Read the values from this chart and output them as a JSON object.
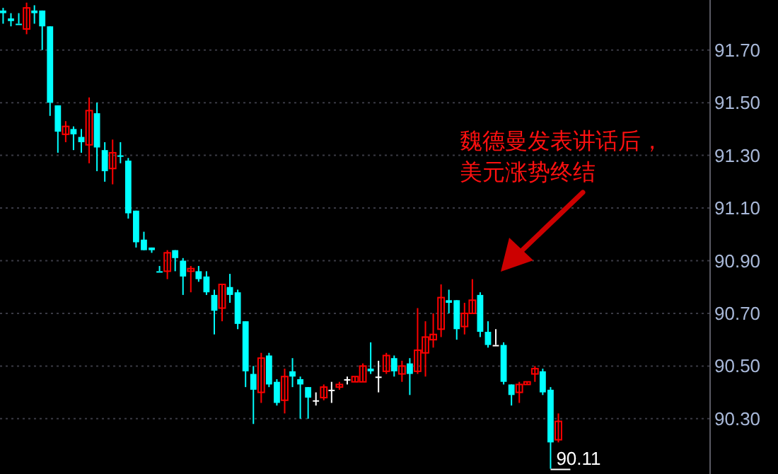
{
  "chart_data": {
    "type": "candlestick",
    "categories": [
      null,
      null,
      null,
      null,
      null,
      null,
      null,
      null,
      null,
      null,
      null,
      null,
      null,
      null,
      null,
      null,
      null,
      null,
      null,
      null,
      null,
      null,
      null,
      null,
      null,
      null,
      null,
      null,
      null,
      null,
      null,
      null,
      null,
      null,
      null,
      null,
      null,
      null,
      null,
      null,
      null,
      null,
      null,
      null,
      null,
      null,
      null,
      null,
      null,
      null,
      null,
      null,
      null,
      null,
      null,
      null,
      null,
      null,
      null,
      null,
      null,
      null,
      null,
      null,
      null,
      null,
      null,
      null,
      null,
      null,
      null,
      null,
      null,
      null,
      null,
      null,
      null,
      null,
      null,
      null,
      null,
      null,
      null,
      null,
      null,
      null,
      null,
      null,
      null,
      null,
      null
    ],
    "ohlc": [
      [
        91.85,
        91.86,
        91.8,
        91.84
      ],
      [
        91.82,
        91.84,
        91.79,
        91.81
      ],
      [
        91.8,
        91.84,
        91.8,
        91.8
      ],
      [
        91.78,
        91.88,
        91.76,
        91.86
      ],
      [
        91.85,
        91.87,
        91.8,
        91.84
      ],
      [
        91.85,
        91.85,
        91.7,
        91.79
      ],
      [
        91.79,
        91.79,
        91.45,
        91.5
      ],
      [
        91.49,
        91.49,
        91.31,
        91.39
      ],
      [
        91.38,
        91.43,
        91.35,
        91.41
      ],
      [
        91.4,
        91.41,
        91.32,
        91.38
      ],
      [
        91.37,
        91.4,
        91.31,
        91.35
      ],
      [
        91.34,
        91.52,
        91.27,
        91.47
      ],
      [
        91.46,
        91.5,
        91.24,
        91.33
      ],
      [
        91.32,
        91.35,
        91.2,
        91.24
      ],
      [
        91.25,
        91.36,
        91.19,
        91.31
      ],
      [
        91.3,
        91.35,
        91.27,
        91.3
      ],
      [
        91.28,
        91.29,
        91.06,
        91.08
      ],
      [
        91.09,
        91.09,
        90.95,
        90.97
      ],
      [
        90.98,
        91.01,
        90.94,
        90.94
      ],
      [
        90.95,
        90.95,
        90.93,
        90.94
      ],
      [
        90.86,
        90.88,
        90.86,
        90.86
      ],
      [
        90.86,
        90.94,
        90.83,
        90.93
      ],
      [
        90.94,
        90.94,
        90.86,
        90.91
      ],
      [
        90.9,
        90.91,
        90.77,
        90.84
      ],
      [
        90.86,
        90.88,
        90.78,
        90.87
      ],
      [
        90.86,
        90.88,
        90.82,
        90.83
      ],
      [
        90.84,
        90.86,
        90.77,
        90.78
      ],
      [
        90.77,
        90.79,
        90.62,
        90.71
      ],
      [
        90.72,
        90.81,
        90.67,
        90.81
      ],
      [
        90.8,
        90.85,
        90.74,
        90.77
      ],
      [
        90.78,
        90.79,
        90.64,
        90.66
      ],
      [
        90.67,
        90.67,
        90.42,
        90.48
      ],
      [
        90.47,
        90.5,
        90.28,
        90.41
      ],
      [
        90.4,
        90.55,
        90.36,
        90.53
      ],
      [
        90.54,
        90.55,
        90.42,
        90.43
      ],
      [
        90.44,
        90.45,
        90.35,
        90.36
      ],
      [
        90.37,
        90.49,
        90.32,
        90.46
      ],
      [
        90.48,
        90.53,
        90.42,
        90.46
      ],
      [
        90.45,
        90.46,
        90.3,
        90.43
      ],
      [
        90.42,
        90.42,
        90.3,
        90.38
      ],
      [
        90.37,
        90.4,
        90.35,
        90.37
      ],
      [
        90.38,
        90.43,
        90.37,
        90.42
      ],
      [
        90.41,
        90.44,
        90.36,
        90.41
      ],
      [
        90.42,
        90.44,
        90.41,
        90.43
      ],
      [
        90.45,
        90.46,
        90.43,
        90.45
      ],
      [
        90.44,
        90.46,
        90.44,
        90.46
      ],
      [
        90.44,
        90.51,
        90.44,
        90.5
      ],
      [
        90.49,
        90.59,
        90.47,
        90.48
      ],
      [
        90.46,
        90.52,
        90.4,
        90.46
      ],
      [
        90.48,
        90.55,
        90.47,
        90.54
      ],
      [
        90.53,
        90.54,
        90.46,
        90.48
      ],
      [
        90.47,
        90.52,
        90.44,
        90.5
      ],
      [
        90.51,
        90.53,
        90.39,
        90.47
      ],
      [
        90.48,
        90.72,
        90.47,
        90.56
      ],
      [
        90.55,
        90.67,
        90.46,
        90.61
      ],
      [
        90.6,
        90.7,
        90.57,
        90.62
      ],
      [
        90.64,
        90.81,
        90.61,
        90.76
      ],
      [
        90.75,
        90.79,
        90.7,
        90.74
      ],
      [
        90.75,
        90.75,
        90.6,
        90.64
      ],
      [
        90.65,
        90.74,
        90.62,
        90.7
      ],
      [
        90.7,
        90.83,
        90.7,
        90.75
      ],
      [
        90.77,
        90.78,
        90.61,
        90.63
      ],
      [
        90.63,
        90.67,
        90.57,
        90.58
      ],
      [
        90.58,
        90.64,
        90.58,
        90.58
      ],
      [
        90.58,
        90.59,
        90.43,
        90.44
      ],
      [
        90.43,
        90.43,
        90.35,
        90.39
      ],
      [
        90.4,
        90.44,
        90.36,
        90.43
      ],
      [
        90.43,
        90.44,
        90.43,
        90.44
      ],
      [
        90.47,
        90.5,
        90.44,
        90.49
      ],
      [
        90.48,
        90.49,
        90.39,
        90.4
      ],
      [
        90.41,
        90.42,
        90.11,
        90.21
      ],
      [
        90.22,
        90.32,
        90.21,
        90.29
      ],
      null,
      null,
      null,
      null,
      null,
      null,
      null,
      null,
      null,
      null,
      null,
      null,
      null,
      null,
      null,
      null,
      null,
      null,
      null
    ],
    "colors": [
      "#00ffff",
      "#00ffff",
      "#00ffff",
      "#ff0000",
      "#00ffff",
      "#00ffff",
      "#00ffff",
      "#00ffff",
      "#ff0000",
      "#00ffff",
      "#00ffff",
      "#ff0000",
      "#00ffff",
      "#00ffff",
      "#ff0000",
      "#00ffff",
      "#00ffff",
      "#00ffff",
      "#00ffff",
      "#00ffff",
      "#00ffff",
      "#ff0000",
      "#00ffff",
      "#00ffff",
      "#ff0000",
      "#00ffff",
      "#00ffff",
      "#00ffff",
      "#ff0000",
      "#00ffff",
      "#00ffff",
      "#00ffff",
      "#00ffff",
      "#ff0000",
      "#00ffff",
      "#00ffff",
      "#ff0000",
      "#00ffff",
      "#00ffff",
      "#00ffff",
      "#ffffff",
      "#ff0000",
      "#ffffff",
      "#ff0000",
      "#ffffff",
      "#ff0000",
      "#ff0000",
      "#00ffff",
      "#ffffff",
      "#ff0000",
      "#00ffff",
      "#ff0000",
      "#00ffff",
      "#ff0000",
      "#ff0000",
      "#ff0000",
      "#ff0000",
      "#00ffff",
      "#00ffff",
      "#ff0000",
      "#ff0000",
      "#00ffff",
      "#00ffff",
      "#ffffff",
      "#00ffff",
      "#00ffff",
      "#ff0000",
      "#ff0000",
      "#ff0000",
      "#00ffff",
      "#00ffff",
      "#ff0000",
      null,
      null,
      null,
      null,
      null,
      null,
      null,
      null,
      null,
      null,
      null,
      null,
      null,
      null,
      null,
      null,
      null,
      null,
      null
    ],
    "ylim": [
      90.09,
      91.89
    ],
    "yticks": [
      {
        "value": 90.3,
        "label": "90.30"
      },
      {
        "value": 90.5,
        "label": "90.50"
      },
      {
        "value": 90.7,
        "label": "90.70"
      },
      {
        "value": 90.9,
        "label": "90.90"
      },
      {
        "value": 91.1,
        "label": "91.10"
      },
      {
        "value": 91.3,
        "label": "91.30"
      },
      {
        "value": 91.5,
        "label": "91.50"
      },
      {
        "value": 91.7,
        "label": "91.70"
      }
    ],
    "grid": "y",
    "annotations": [
      "魏德曼发表讲话后，美元涨势终结",
      "90.11"
    ]
  }
}
